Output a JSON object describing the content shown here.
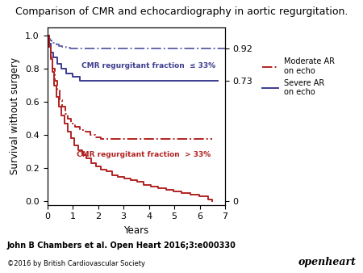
{
  "chart_data": {
    "type": "step",
    "title": "Comparison of CMR and echocardiography in aortic regurgitation.",
    "x_label": "Years",
    "y_label": "Survival without surgery",
    "xlim": [
      0,
      7
    ],
    "ylim": [
      -0.02,
      1.05
    ],
    "xticks": [
      0,
      1,
      2,
      3,
      4,
      5,
      6,
      7
    ],
    "yticks": [
      0.0,
      0.2,
      0.4,
      0.6,
      0.8,
      1.0
    ],
    "y2lim": [
      -0.02,
      1.05
    ],
    "y2ticks": [
      0.92,
      0.73,
      0
    ],
    "grid": false,
    "legend": "center left",
    "legend_entries": [
      {
        "name": "Moderate AR\non echo",
        "color": "#b22222",
        "line_style": "dashdot"
      },
      {
        "name": "Severe AR\non echo",
        "color": "#3b3b8f",
        "line_style": "solid"
      }
    ],
    "series": [
      {
        "color": "#6666aa",
        "line_style": "dashdot",
        "x": [
          0.0,
          0.08,
          0.12,
          0.18,
          0.25,
          0.35,
          0.45,
          0.6,
          0.75,
          0.9,
          1.1,
          1.3,
          7.0
        ],
        "values": [
          1.0,
          0.98,
          0.97,
          0.965,
          0.955,
          0.945,
          0.935,
          0.93,
          0.925,
          0.922,
          0.921,
          0.92,
          0.92
        ]
      },
      {
        "color": "#3b3b8f",
        "line_style": "solid",
        "x": [
          0.0,
          0.08,
          0.15,
          0.25,
          0.4,
          0.55,
          0.75,
          1.0,
          1.3,
          6.7
        ],
        "values": [
          1.0,
          0.95,
          0.9,
          0.87,
          0.83,
          0.8,
          0.77,
          0.75,
          0.73,
          0.73
        ]
      },
      {
        "color": "#b22222",
        "line_style": "dashdot",
        "x": [
          0.0,
          0.08,
          0.15,
          0.22,
          0.3,
          0.4,
          0.5,
          0.6,
          0.7,
          0.8,
          0.95,
          1.1,
          1.3,
          1.5,
          1.7,
          1.9,
          2.1,
          6.5
        ],
        "values": [
          1.0,
          0.93,
          0.87,
          0.8,
          0.73,
          0.67,
          0.61,
          0.57,
          0.53,
          0.5,
          0.47,
          0.45,
          0.43,
          0.42,
          0.4,
          0.385,
          0.375,
          0.375
        ]
      },
      {
        "color": "#b22222",
        "line_style": "solid",
        "x": [
          0.0,
          0.07,
          0.13,
          0.2,
          0.28,
          0.37,
          0.47,
          0.57,
          0.68,
          0.8,
          0.93,
          1.07,
          1.22,
          1.38,
          1.55,
          1.73,
          1.92,
          2.12,
          2.33,
          2.55,
          2.78,
          3.02,
          3.27,
          3.53,
          3.8,
          4.08,
          4.37,
          4.67,
          4.98,
          5.3,
          5.63,
          5.97,
          6.32,
          6.5
        ],
        "values": [
          1.0,
          0.93,
          0.86,
          0.78,
          0.7,
          0.63,
          0.57,
          0.52,
          0.47,
          0.42,
          0.38,
          0.34,
          0.31,
          0.28,
          0.26,
          0.23,
          0.21,
          0.19,
          0.18,
          0.16,
          0.15,
          0.14,
          0.13,
          0.12,
          0.1,
          0.09,
          0.08,
          0.07,
          0.06,
          0.05,
          0.04,
          0.03,
          0.01,
          0.0
        ]
      }
    ],
    "annotations": [
      {
        "x": 4.0,
        "y": 0.82,
        "text": "CMR regurgitant fraction  ≤ 33%",
        "color": "#3b3b8f"
      },
      {
        "x": 3.8,
        "y": 0.28,
        "text": "CMR regurgitant fraction  > 33%",
        "color": "#b22222"
      }
    ],
    "source": "John B Chambers et al. Open Heart 2016;3:e000330",
    "copyright": "©2016 by British Cardiovascular Society",
    "brand": "openheart"
  }
}
